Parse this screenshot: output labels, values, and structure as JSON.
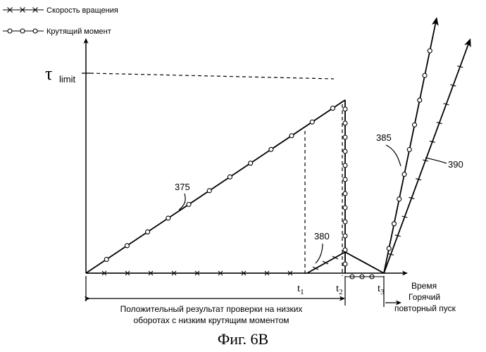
{
  "legend": {
    "speed": "Скорость вращения",
    "torque": "Крутящий момент"
  },
  "labels": {
    "tau": "τ",
    "limit": "limit",
    "t1": "t",
    "t1_sub": "1",
    "t2": "t",
    "t2_sub": "2",
    "t3": "t",
    "t3_sub": "3",
    "time": "Время",
    "ref_375": "375",
    "ref_380": "380",
    "ref_385": "385",
    "ref_390": "390",
    "low_speed_note_line1": "Положительный результат проверки на низких",
    "low_speed_note_line2": "оборотах с низким крутящим моментом",
    "hot_restart_line1": "Горячий",
    "hot_restart_line2": "повторный пуск"
  },
  "caption": "Фиг. 6В",
  "colors": {
    "ink": "#000000",
    "paper": "#ffffff"
  }
}
